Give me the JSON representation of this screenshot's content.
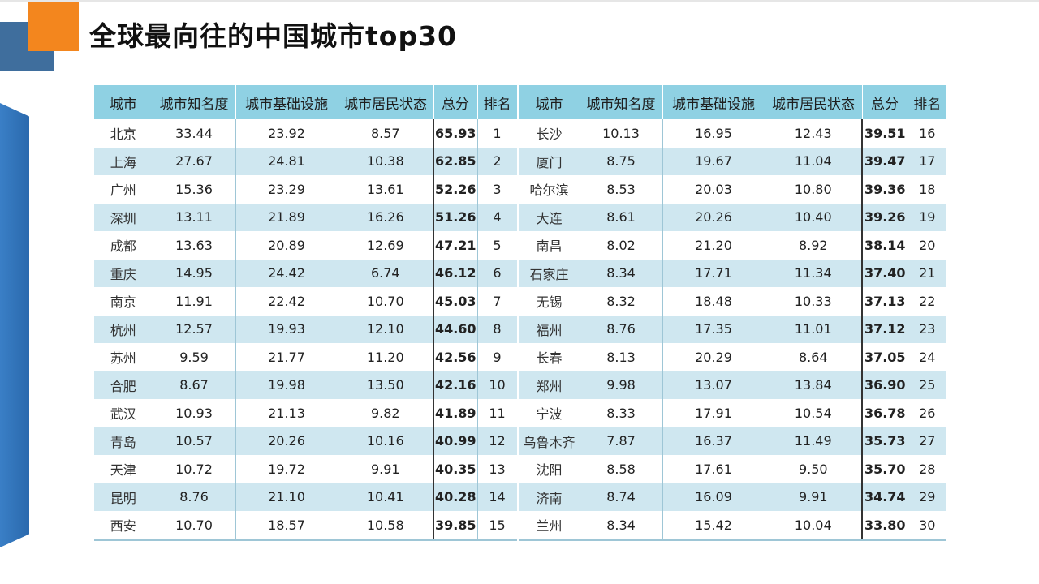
{
  "title": "全球最向往的中国城市top30",
  "table": {
    "headers": [
      "城市",
      "城市知名度",
      "城市基础设施",
      "城市居民状态",
      "总分",
      "排名",
      "城市",
      "城市知名度",
      "城市基础设施",
      "城市居民状态",
      "总分",
      "排名"
    ],
    "rows": [
      [
        "北京",
        "33.44",
        "23.92",
        "8.57",
        "65.93",
        "1",
        "长沙",
        "10.13",
        "16.95",
        "12.43",
        "39.51",
        "16"
      ],
      [
        "上海",
        "27.67",
        "24.81",
        "10.38",
        "62.85",
        "2",
        "厦门",
        "8.75",
        "19.67",
        "11.04",
        "39.47",
        "17"
      ],
      [
        "广州",
        "15.36",
        "23.29",
        "13.61",
        "52.26",
        "3",
        "哈尔滨",
        "8.53",
        "20.03",
        "10.80",
        "39.36",
        "18"
      ],
      [
        "深圳",
        "13.11",
        "21.89",
        "16.26",
        "51.26",
        "4",
        "大连",
        "8.61",
        "20.26",
        "10.40",
        "39.26",
        "19"
      ],
      [
        "成都",
        "13.63",
        "20.89",
        "12.69",
        "47.21",
        "5",
        "南昌",
        "8.02",
        "21.20",
        "8.92",
        "38.14",
        "20"
      ],
      [
        "重庆",
        "14.95",
        "24.42",
        "6.74",
        "46.12",
        "6",
        "石家庄",
        "8.34",
        "17.71",
        "11.34",
        "37.40",
        "21"
      ],
      [
        "南京",
        "11.91",
        "22.42",
        "10.70",
        "45.03",
        "7",
        "无锡",
        "8.32",
        "18.48",
        "10.33",
        "37.13",
        "22"
      ],
      [
        "杭州",
        "12.57",
        "19.93",
        "12.10",
        "44.60",
        "8",
        "福州",
        "8.76",
        "17.35",
        "11.01",
        "37.12",
        "23"
      ],
      [
        "苏州",
        "9.59",
        "21.77",
        "11.20",
        "42.56",
        "9",
        "长春",
        "8.13",
        "20.29",
        "8.64",
        "37.05",
        "24"
      ],
      [
        "合肥",
        "8.67",
        "19.98",
        "13.50",
        "42.16",
        "10",
        "郑州",
        "9.98",
        "13.07",
        "13.84",
        "36.90",
        "25"
      ],
      [
        "武汉",
        "10.93",
        "21.13",
        "9.82",
        "41.89",
        "11",
        "宁波",
        "8.33",
        "17.91",
        "10.54",
        "36.78",
        "26"
      ],
      [
        "青岛",
        "10.57",
        "20.26",
        "10.16",
        "40.99",
        "12",
        "乌鲁木齐",
        "7.87",
        "16.37",
        "11.49",
        "35.73",
        "27"
      ],
      [
        "天津",
        "10.72",
        "19.72",
        "9.91",
        "40.35",
        "13",
        "沈阳",
        "8.58",
        "17.61",
        "9.50",
        "35.70",
        "28"
      ],
      [
        "昆明",
        "8.76",
        "21.10",
        "10.41",
        "40.28",
        "14",
        "济南",
        "8.74",
        "16.09",
        "9.91",
        "34.74",
        "29"
      ],
      [
        "西安",
        "10.70",
        "18.57",
        "10.58",
        "39.85",
        "15",
        "兰州",
        "8.34",
        "15.42",
        "10.04",
        "33.80",
        "30"
      ]
    ]
  }
}
